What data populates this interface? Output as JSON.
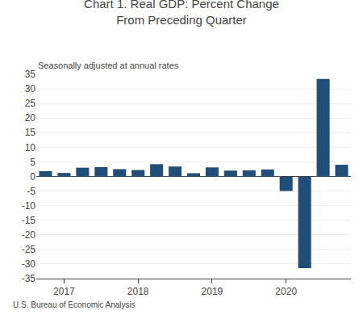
{
  "chart_data": {
    "type": "bar",
    "title": "Chart 1. Real GDP: Percent Change\nFrom Preceding Quarter",
    "subtitle": "Seasonally adjusted at annual rates",
    "annotations": [
      "U.S. Bureau of Economic Analysis"
    ],
    "categories": [
      null,
      "2017",
      null,
      null,
      null,
      "2018",
      null,
      null,
      null,
      "2019",
      null,
      null,
      null,
      "2020",
      null,
      null,
      null
    ],
    "values": [
      1.8,
      1.2,
      3.0,
      3.2,
      2.5,
      2.2,
      4.2,
      3.4,
      1.1,
      3.1,
      2.0,
      2.1,
      2.4,
      -5.0,
      -31.4,
      33.4,
      4.0
    ],
    "color": "#1F4E79",
    "ylim": [
      -35,
      35
    ],
    "yticks": [
      -35,
      -30,
      -25,
      -20,
      -15,
      -10,
      -5,
      0,
      5,
      10,
      15,
      20,
      25,
      30,
      35
    ],
    "grid": true
  }
}
